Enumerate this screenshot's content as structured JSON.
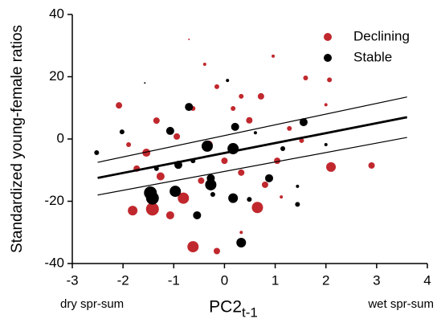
{
  "chart_data": {
    "type": "scatter",
    "ylabel": "Standardized young-female ratios",
    "xlabel": "PC2",
    "xlabel_subscript": "t-1",
    "annotations": [
      "dry spr-sum",
      "wet spr-sum"
    ],
    "xlim": [
      -3,
      4
    ],
    "xticks": [
      -3,
      -2,
      -1,
      0,
      1,
      2,
      3,
      4
    ],
    "ylim": [
      -40,
      40
    ],
    "yticks": [
      -40,
      -20,
      0,
      20,
      40
    ],
    "legend": "top-right",
    "series": [
      {
        "name": "Declining",
        "color": "#c0282d",
        "x": [
          -1.42,
          -1.81,
          -0.81,
          -0.62,
          0.65,
          -1.07,
          2.1,
          2.9,
          -2.08,
          -0.15,
          0.33,
          2.0,
          2.07,
          2.02,
          -0.7,
          -1.54,
          -1.26,
          -0.31,
          0.49,
          0.72,
          1.04,
          1.28,
          0.0,
          -1.73,
          -0.94,
          0.17,
          -0.46,
          1.52,
          0.33,
          0.8,
          -0.62,
          -1.34,
          -1.89,
          -0.15,
          0.96,
          1.6,
          -0.39,
          0.33,
          1.12
        ],
        "values": [
          -22.5,
          -23,
          -19,
          -34.6,
          -22,
          -24.5,
          -9,
          -8.5,
          10.8,
          -36,
          -30,
          11,
          19,
          33,
          32,
          -4.4,
          -12,
          -1.8,
          6,
          13.7,
          -7,
          3.4,
          -7,
          -9.5,
          0.8,
          9.8,
          -13.4,
          -0.5,
          -10.8,
          -14.7,
          9.8,
          5.9,
          -1.8,
          16.8,
          26.6,
          19.6,
          24,
          13.7,
          -18.6
        ],
        "sizes": [
          8,
          6,
          7,
          7,
          7,
          5,
          6,
          4,
          4,
          4,
          2,
          2,
          3,
          1,
          1,
          5,
          5,
          5,
          4,
          4,
          4,
          3,
          4,
          4,
          4,
          3,
          4,
          3,
          4,
          4,
          3,
          4,
          3,
          3,
          2,
          3,
          2,
          3,
          2
        ]
      },
      {
        "name": "Stable",
        "color": "#000000",
        "x": [
          -1.42,
          -1.46,
          -0.97,
          -0.27,
          0.17,
          -0.54,
          0.33,
          0.88,
          1.56,
          -0.34,
          0.17,
          0.21,
          -0.7,
          -1.07,
          -0.91,
          1.15,
          -2.52,
          -2.02,
          -0.23,
          1.44,
          0.06,
          0.61,
          -1.34,
          1.44,
          2.0,
          -1.57,
          -0.27,
          0.49,
          -0.62
        ],
        "values": [
          -19,
          -17.3,
          -16.8,
          -14.7,
          -19,
          -24.5,
          -33.3,
          -12.6,
          5.4,
          -2.3,
          -3.1,
          3.9,
          10.3,
          2.6,
          -8.3,
          -3.1,
          -4.4,
          2.3,
          -17.8,
          -21,
          18.8,
          2,
          -9.5,
          -15.2,
          -1.8,
          18,
          -12.6,
          -19.4,
          -7
        ],
        "sizes": [
          8,
          8,
          7,
          7,
          6,
          5,
          6,
          5,
          5,
          7,
          7,
          5,
          5,
          5,
          5,
          3,
          3,
          3,
          3,
          3,
          2,
          2,
          3,
          2,
          2,
          1,
          5,
          3,
          3
        ]
      }
    ],
    "fit": {
      "x": [
        -2.5,
        3.6
      ],
      "y": [
        -12.5,
        7
      ]
    },
    "upper": {
      "x": [
        -2.5,
        3.6
      ],
      "y": [
        -7.5,
        13.5
      ]
    },
    "lower": {
      "x": [
        -2.5,
        3.6
      ],
      "y": [
        -18,
        0.5
      ]
    }
  }
}
